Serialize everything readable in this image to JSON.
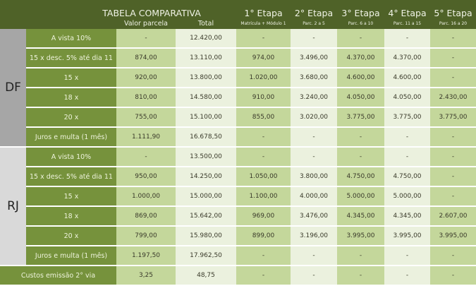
{
  "title": "TABELA COMPARATIVA",
  "columns": [
    {
      "label": "Valor parcela",
      "sub": ""
    },
    {
      "label": "Total",
      "sub": ""
    },
    {
      "label": "1° Etapa",
      "sub": "Matrícula + Módulo 1"
    },
    {
      "label": "2° Etapa",
      "sub": "Parc. 2 a 5"
    },
    {
      "label": "3° Etapa",
      "sub": "Parc. 6 a 10"
    },
    {
      "label": "4° Etapa",
      "sub": "Parc. 11 a 15"
    },
    {
      "label": "5° Etapa",
      "sub": "Parc. 16 a 20"
    }
  ],
  "groups": [
    {
      "name": "DF",
      "rows": [
        {
          "label": "A vista 10%",
          "cells": [
            "-",
            "12.420,00",
            "-",
            "-",
            "-",
            "-",
            "-"
          ]
        },
        {
          "label": "15 x desc. 5% até dia 11",
          "cells": [
            "874,00",
            "13.110,00",
            "974,00",
            "3.496,00",
            "4.370,00",
            "4.370,00",
            "-"
          ]
        },
        {
          "label": "15 x",
          "cells": [
            "920,00",
            "13.800,00",
            "1.020,00",
            "3.680,00",
            "4.600,00",
            "4.600,00",
            "-"
          ]
        },
        {
          "label": "18 x",
          "cells": [
            "810,00",
            "14.580,00",
            "910,00",
            "3.240,00",
            "4.050,00",
            "4.050,00",
            "2.430,00"
          ]
        },
        {
          "label": "20 x",
          "cells": [
            "755,00",
            "15.100,00",
            "855,00",
            "3.020,00",
            "3.775,00",
            "3.775,00",
            "3.775,00"
          ]
        },
        {
          "label": "Juros e multa (1 mês)",
          "cells": [
            "1.111,90",
            "16.678,50",
            "-",
            "-",
            "-",
            "-",
            "-"
          ]
        }
      ]
    },
    {
      "name": "RJ",
      "rows": [
        {
          "label": "A vista 10%",
          "cells": [
            "-",
            "13.500,00",
            "-",
            "-",
            "-",
            "-",
            "-"
          ]
        },
        {
          "label": "15 x desc. 5% até dia 11",
          "cells": [
            "950,00",
            "14.250,00",
            "1.050,00",
            "3.800,00",
            "4.750,00",
            "4.750,00",
            "-"
          ]
        },
        {
          "label": "15 x",
          "cells": [
            "1.000,00",
            "15.000,00",
            "1.100,00",
            "4.000,00",
            "5.000,00",
            "5.000,00",
            "-"
          ]
        },
        {
          "label": "18 x",
          "cells": [
            "869,00",
            "15.642,00",
            "969,00",
            "3.476,00",
            "4.345,00",
            "4.345,00",
            "2.607,00"
          ]
        },
        {
          "label": "20 x",
          "cells": [
            "799,00",
            "15.980,00",
            "899,00",
            "3.196,00",
            "3.995,00",
            "3.995,00",
            "3.995,00"
          ]
        },
        {
          "label": "Juros e multa (1 mês)",
          "cells": [
            "1.197,50",
            "17.962,50",
            "-",
            "-",
            "-",
            "-",
            "-"
          ]
        }
      ]
    }
  ],
  "footer_row": {
    "label": "Custos emissão 2° via",
    "cells": [
      "3,25",
      "48,75",
      "-",
      "-",
      "-",
      "-",
      "-"
    ]
  },
  "colors": {
    "header": "#4f6228",
    "label": "#76923c",
    "green": "#c4d79b",
    "pale": "#ebf1de",
    "df": "#a6a6a6",
    "rj": "#d9d9d9"
  }
}
